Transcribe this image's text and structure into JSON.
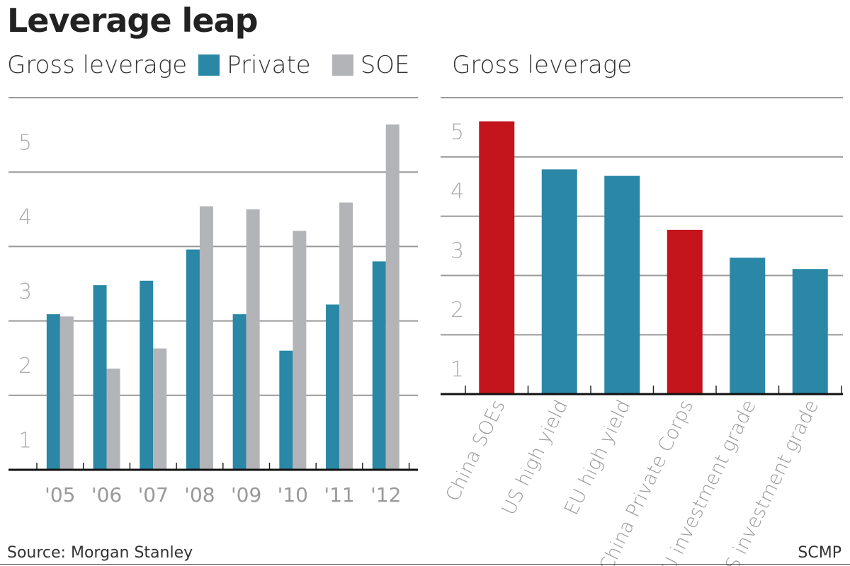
{
  "title": "Leverage leap",
  "source": "Source: Morgan Stanley",
  "credit": "SCMP",
  "colors": {
    "private": "#2a87a5",
    "soe": "#b3b4b7",
    "china": "#c4141c",
    "other": "#2a87a5"
  },
  "chart_data": [
    {
      "type": "bar",
      "title": "Gross leverage",
      "legend": [
        "Private",
        "SOE"
      ],
      "legend_placement": "top",
      "categories": [
        "'05",
        "'06",
        "'07",
        "'08",
        "'09",
        "'10",
        "'11",
        "'12"
      ],
      "series": [
        {
          "name": "Private",
          "values": [
            2.09,
            2.48,
            2.54,
            2.96,
            2.09,
            1.6,
            2.22,
            2.8
          ]
        },
        {
          "name": "SOE",
          "values": [
            2.06,
            1.36,
            1.63,
            3.54,
            3.5,
            3.21,
            3.59,
            4.64
          ]
        }
      ],
      "yticks": [
        "1",
        "2",
        "3",
        "4",
        "5"
      ],
      "ylim": [
        0,
        5
      ],
      "grid": true
    },
    {
      "type": "bar",
      "title": "Gross leverage",
      "categories": [
        "China SOEs",
        "US high yield",
        "EU high yield",
        "China Private Corps",
        "EU investment grade",
        "US investment grade"
      ],
      "values": [
        4.6,
        3.79,
        3.68,
        2.77,
        2.3,
        2.11
      ],
      "highlight": [
        true,
        false,
        false,
        true,
        false,
        false
      ],
      "yticks": [
        "1",
        "2",
        "3",
        "4",
        "5"
      ],
      "ylim": [
        0,
        5
      ],
      "grid": true
    }
  ]
}
